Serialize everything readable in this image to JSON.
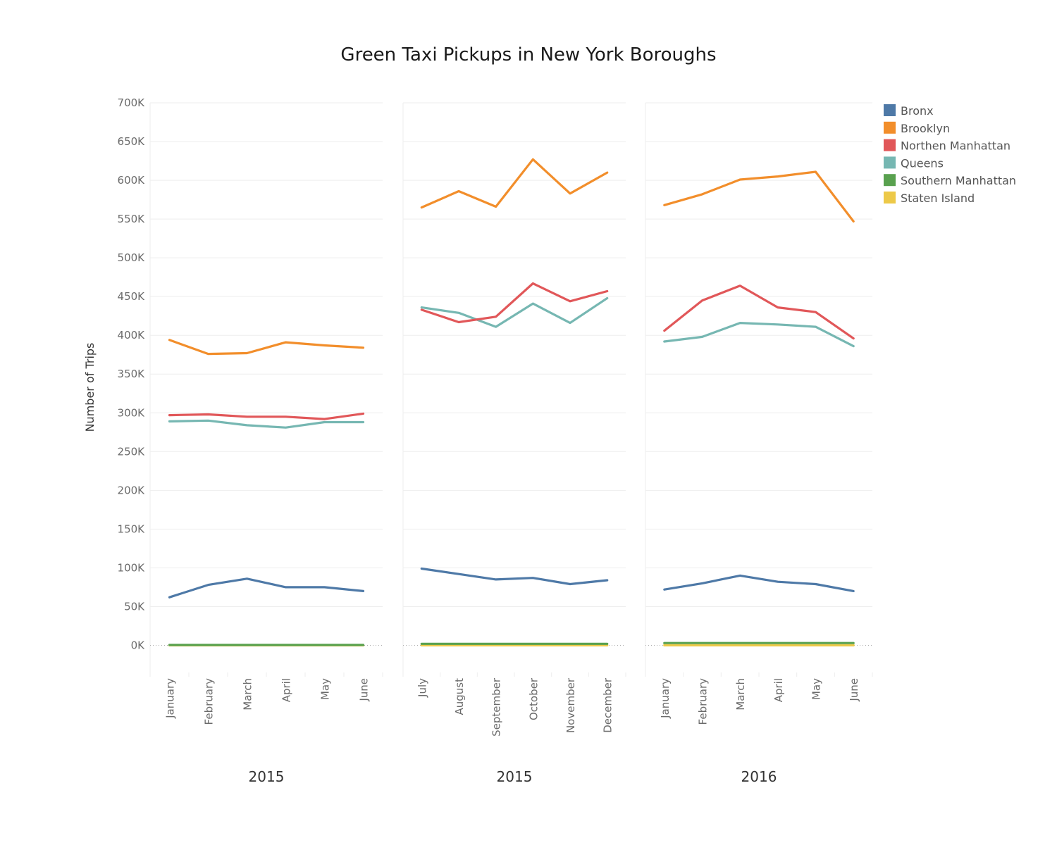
{
  "chart_data": {
    "type": "line",
    "title": "Green Taxi Pickups in New York Boroughs",
    "ylabel": "Number of Trips",
    "ylim": [
      -35000,
      700000
    ],
    "yticks": [
      {
        "value": 0,
        "label": "0K"
      },
      {
        "value": 50000,
        "label": "50K"
      },
      {
        "value": 100000,
        "label": "100K"
      },
      {
        "value": 150000,
        "label": "150K"
      },
      {
        "value": 200000,
        "label": "200K"
      },
      {
        "value": 250000,
        "label": "250K"
      },
      {
        "value": 300000,
        "label": "300K"
      },
      {
        "value": 350000,
        "label": "350K"
      },
      {
        "value": 400000,
        "label": "400K"
      },
      {
        "value": 450000,
        "label": "450K"
      },
      {
        "value": 500000,
        "label": "500K"
      },
      {
        "value": 550000,
        "label": "550K"
      },
      {
        "value": 600000,
        "label": "600K"
      },
      {
        "value": 650000,
        "label": "650K"
      },
      {
        "value": 700000,
        "label": "700K"
      }
    ],
    "legend_position": "top-right",
    "grid": true,
    "legend": [
      {
        "name": "Bronx",
        "color": "#4e79a7"
      },
      {
        "name": "Brooklyn",
        "color": "#f28e2b"
      },
      {
        "name": "Northen Manhattan",
        "color": "#e15759"
      },
      {
        "name": "Queens",
        "color": "#76b7b2"
      },
      {
        "name": "Southern Manhattan",
        "color": "#59a14f"
      },
      {
        "name": "Staten Island",
        "color": "#edc948"
      }
    ],
    "panels": [
      {
        "label": "2015",
        "categories": [
          "January",
          "February",
          "March",
          "April",
          "May",
          "June"
        ],
        "series": [
          {
            "name": "Bronx",
            "values": [
              62000,
              78000,
              86000,
              75000,
              75000,
              70000
            ]
          },
          {
            "name": "Brooklyn",
            "values": [
              394000,
              376000,
              377000,
              391000,
              387000,
              384000
            ]
          },
          {
            "name": "Northen Manhattan",
            "values": [
              297000,
              298000,
              295000,
              295000,
              292000,
              299000
            ]
          },
          {
            "name": "Queens",
            "values": [
              289000,
              290000,
              284000,
              281000,
              288000,
              288000
            ]
          },
          {
            "name": "Southern Manhattan",
            "values": [
              500,
              500,
              500,
              500,
              500,
              500
            ]
          },
          {
            "name": "Staten Island",
            "values": [
              100,
              100,
              100,
              100,
              100,
              100
            ]
          }
        ]
      },
      {
        "label": "2015",
        "categories": [
          "July",
          "August",
          "September",
          "October",
          "November",
          "December"
        ],
        "series": [
          {
            "name": "Bronx",
            "values": [
              99000,
              92000,
              85000,
              87000,
              79000,
              84000
            ]
          },
          {
            "name": "Brooklyn",
            "values": [
              565000,
              586000,
              566000,
              627000,
              583000,
              610000
            ]
          },
          {
            "name": "Northen Manhattan",
            "values": [
              433000,
              417000,
              424000,
              467000,
              444000,
              457000
            ]
          },
          {
            "name": "Queens",
            "values": [
              436000,
              429000,
              411000,
              441000,
              416000,
              448000
            ]
          },
          {
            "name": "Southern Manhattan",
            "values": [
              2000,
              2000,
              2000,
              2000,
              2000,
              2000
            ]
          },
          {
            "name": "Staten Island",
            "values": [
              100,
              100,
              100,
              100,
              100,
              100
            ]
          }
        ]
      },
      {
        "label": "2016",
        "categories": [
          "January",
          "February",
          "March",
          "April",
          "May",
          "June"
        ],
        "series": [
          {
            "name": "Bronx",
            "values": [
              72000,
              80000,
              90000,
              82000,
              79000,
              70000
            ]
          },
          {
            "name": "Brooklyn",
            "values": [
              568000,
              582000,
              601000,
              605000,
              611000,
              547000
            ]
          },
          {
            "name": "Northen Manhattan",
            "values": [
              406000,
              445000,
              464000,
              436000,
              430000,
              396000
            ]
          },
          {
            "name": "Queens",
            "values": [
              392000,
              398000,
              416000,
              414000,
              411000,
              386000
            ]
          },
          {
            "name": "Southern Manhattan",
            "values": [
              3000,
              3000,
              3000,
              3000,
              3000,
              3000
            ]
          },
          {
            "name": "Staten Island",
            "values": [
              100,
              100,
              100,
              100,
              100,
              100
            ]
          }
        ]
      }
    ]
  }
}
